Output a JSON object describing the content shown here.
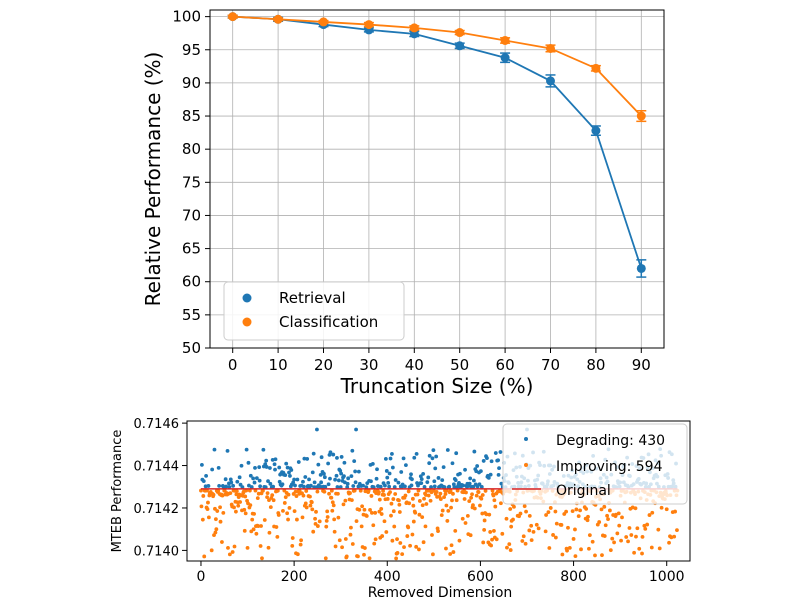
{
  "chart_data": [
    {
      "type": "line",
      "xlabel": "Truncation Size (%)",
      "ylabel": "Relative Performance (%)",
      "xlim": [
        -5,
        95
      ],
      "ylim": [
        50,
        101
      ],
      "xticks": [
        0,
        10,
        20,
        30,
        40,
        50,
        60,
        70,
        80,
        90
      ],
      "yticks": [
        50,
        55,
        60,
        65,
        70,
        75,
        80,
        85,
        90,
        95,
        100
      ],
      "grid": true,
      "legend": "bottom-left",
      "series": [
        {
          "name": "Retrieval",
          "color": "#1f77b4",
          "x": [
            0,
            10,
            20,
            30,
            40,
            50,
            60,
            70,
            80,
            90
          ],
          "y": [
            100,
            99.6,
            98.8,
            98.0,
            97.4,
            95.6,
            93.8,
            90.3,
            82.8,
            62.0
          ],
          "err": [
            0.2,
            0.3,
            0.3,
            0.3,
            0.4,
            0.4,
            0.7,
            0.9,
            0.7,
            1.3
          ]
        },
        {
          "name": "Classification",
          "color": "#ff7f0e",
          "x": [
            0,
            10,
            20,
            30,
            40,
            50,
            60,
            70,
            80,
            90
          ],
          "y": [
            100,
            99.6,
            99.2,
            98.8,
            98.3,
            97.6,
            96.4,
            95.2,
            92.2,
            85.0
          ],
          "err": [
            0.2,
            0.2,
            0.2,
            0.3,
            0.3,
            0.3,
            0.4,
            0.5,
            0.4,
            0.8
          ]
        }
      ]
    },
    {
      "type": "scatter",
      "xlabel": "Removed Dimension",
      "ylabel": "MTEB Performance",
      "xlim": [
        -30,
        1050
      ],
      "ylim": [
        0.71395,
        0.71461
      ],
      "xticks": [
        0,
        200,
        400,
        600,
        800,
        1000
      ],
      "yticks": [
        0.714,
        0.7142,
        0.7144,
        0.7146
      ],
      "ytick_labels": [
        "0.7140",
        "0.7142",
        "0.7144",
        "0.7146"
      ],
      "grid": false,
      "legend": "top-right",
      "baseline": 0.71429,
      "degrading_count": 430,
      "improving_count": 594,
      "x_range": [
        0,
        1023
      ],
      "series": [
        {
          "name": "Degrading: 430",
          "color": "#1f77b4"
        },
        {
          "name": "Improving: 594",
          "color": "#ff7f0e"
        },
        {
          "name": "Original",
          "color": "#d62728"
        }
      ]
    }
  ]
}
